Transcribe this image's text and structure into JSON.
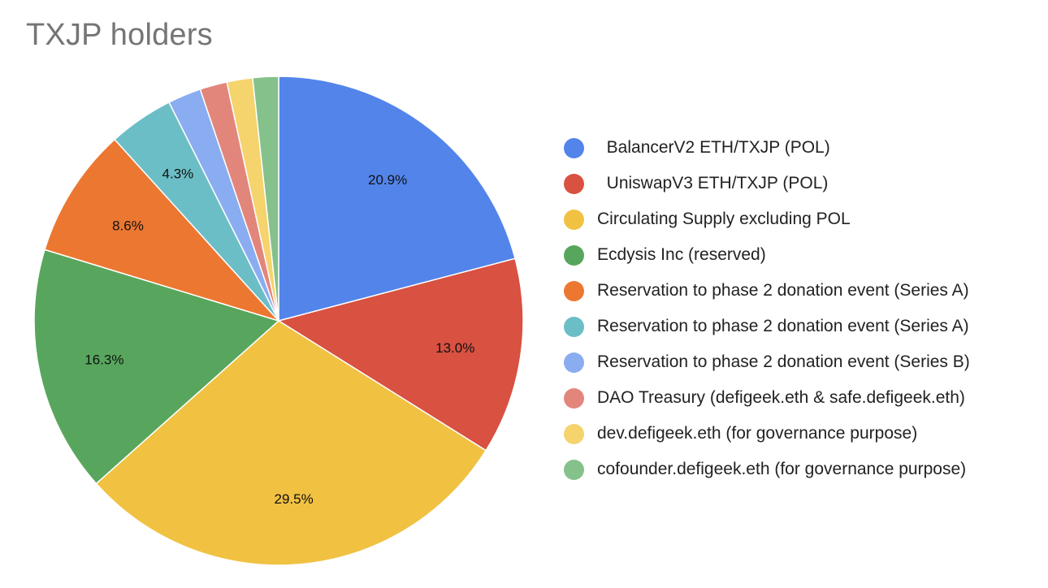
{
  "chart_data": {
    "type": "pie",
    "title": "TXJP holders",
    "legend_position": "right",
    "start_angle_deg": 0,
    "direction": "clockwise",
    "slices": [
      {
        "label": "  BalancerV2 ETH/TXJP (POL)",
        "value": 20.9,
        "display": "20.9%",
        "color": "#5384EA"
      },
      {
        "label": "  UniswapV3 ETH/TXJP (POL)",
        "value": 13.0,
        "display": "13.0%",
        "color": "#D85141"
      },
      {
        "label": "Circulating Supply excluding POL",
        "value": 29.5,
        "display": "29.5%",
        "color": "#F1C142"
      },
      {
        "label": "Ecdysis Inc (reserved)",
        "value": 16.3,
        "display": "16.3%",
        "color": "#58A65D"
      },
      {
        "label": "Reservation to phase 2 donation event (Series A)",
        "value": 8.6,
        "display": "8.6%",
        "color": "#EC7731"
      },
      {
        "label": "Reservation to phase 2 donation event (Series A)",
        "value": 4.3,
        "display": "4.3%",
        "color": "#6CBEC6"
      },
      {
        "label": "Reservation to phase 2 donation event (Series B)",
        "value": 2.2,
        "display": "",
        "color": "#8AACF1"
      },
      {
        "label": "DAO Treasury (defigeek.eth & safe.defigeek.eth)",
        "value": 1.8,
        "display": "",
        "color": "#E2867C"
      },
      {
        "label": "dev.defigeek.eth (for governance purpose)",
        "value": 1.7,
        "display": "",
        "color": "#F5D36D"
      },
      {
        "label": "cofounder.defigeek.eth (for governance purpose)",
        "value": 1.7,
        "display": "",
        "color": "#85C18B"
      }
    ]
  }
}
